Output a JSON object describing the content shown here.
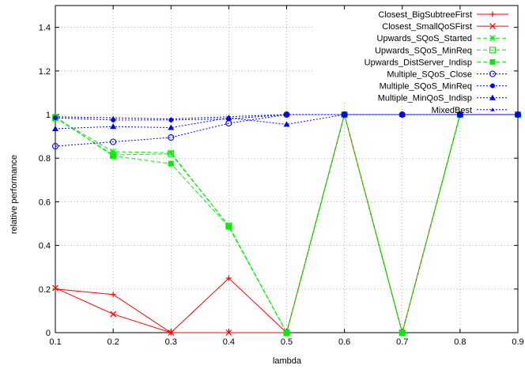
{
  "chart_data": {
    "type": "line",
    "xlabel": "lambda",
    "ylabel": "relative performance",
    "xlim": [
      0.1,
      0.9
    ],
    "ylim": [
      0,
      1.5
    ],
    "x_ticks": [
      "0.1",
      "0.2",
      "0.3",
      "0.4",
      "0.5",
      "0.6",
      "0.7",
      "0.8",
      "0.9"
    ],
    "y_ticks": [
      "0",
      "0.2",
      "0.4",
      "0.6",
      "0.8",
      "1",
      "1.2",
      "1.4"
    ],
    "grid": true,
    "legend_position": "top-right",
    "x": [
      0.1,
      0.2,
      0.3,
      0.4,
      0.5,
      0.6,
      0.7,
      0.8,
      0.9
    ],
    "series": [
      {
        "name": "Closest_BigSubtreeFirst",
        "color": "#ff0000",
        "dash": "solid",
        "marker": "plus",
        "values": [
          0.2,
          0.175,
          0.0,
          0.25,
          0.0,
          1.0,
          0.0,
          1.0,
          1.0
        ]
      },
      {
        "name": "Closest_SmallQoSFirst",
        "color": "#ff0000",
        "dash": "solid",
        "marker": "cross",
        "values": [
          0.205,
          0.085,
          0.0,
          0.0,
          0.0,
          1.0,
          0.0,
          1.0,
          1.0
        ]
      },
      {
        "name": "Upwards_SQoS_Started",
        "color": "#00ee00",
        "dash": "dashed",
        "marker": "star",
        "values": [
          0.985,
          0.83,
          0.825,
          0.49,
          0.0,
          1.0,
          0.0,
          1.0,
          1.0
        ]
      },
      {
        "name": "Upwards_SQoS_MinReq",
        "color": "#00ee00",
        "dash": "dashed",
        "marker": "square-open",
        "values": [
          0.985,
          0.815,
          0.82,
          0.49,
          0.0,
          1.0,
          0.0,
          1.0,
          1.0
        ]
      },
      {
        "name": "Upwards_DistServer_Indisp",
        "color": "#00ee00",
        "dash": "dashed",
        "marker": "square-filled",
        "values": [
          0.99,
          0.81,
          0.775,
          0.485,
          0.0,
          1.0,
          0.0,
          1.0,
          1.0
        ]
      },
      {
        "name": "Multiple_SQoS_Close",
        "color": "#0000ff",
        "dash": "dotted",
        "marker": "circle-open",
        "values": [
          0.855,
          0.875,
          0.895,
          0.96,
          1.0,
          1.0,
          1.0,
          1.0,
          1.0
        ]
      },
      {
        "name": "Multiple_SQoS_MinReq",
        "color": "#0000ff",
        "dash": "dotted",
        "marker": "circle-filled",
        "values": [
          0.985,
          0.975,
          0.975,
          0.98,
          1.0,
          1.0,
          1.0,
          1.0,
          1.0
        ]
      },
      {
        "name": "Multiple_MinQoS_Indisp",
        "color": "#0000ff",
        "dash": "dotted",
        "marker": "triangle-filled",
        "values": [
          0.935,
          0.945,
          0.94,
          0.985,
          0.955,
          1.0,
          1.0,
          1.0,
          1.0
        ]
      },
      {
        "name": "MixedBest",
        "color": "#0000ff",
        "dash": "dotted",
        "marker": "triangle-small",
        "values": [
          0.99,
          0.985,
          0.98,
          0.99,
          1.0,
          1.0,
          1.0,
          1.0,
          1.0
        ]
      }
    ]
  }
}
